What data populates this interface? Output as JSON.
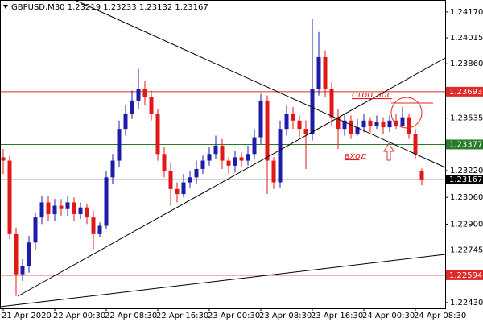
{
  "chart_data": {
    "type": "candlestick",
    "title": "GBPUSD,M30",
    "up_color": "#1c1ca8",
    "down_color": "#e01818",
    "ylim": [
      1.22396,
      1.24237
    ],
    "yticks": [
      {
        "value": 1.2417,
        "label": "1.24170"
      },
      1.24015,
      {
        "value": 1.2386,
        "label": "1.23860"
      },
      1.23535,
      {
        "value": 1.2322,
        "label": "1.23220"
      },
      {
        "value": 1.2306,
        "label": "1.23060"
      },
      {
        "value": 1.229,
        "label": "1.22900"
      },
      1.22745,
      {
        "value": 1.2243,
        "label": "1.22430"
      }
    ],
    "levels": [
      {
        "value": 1.23693,
        "color": "#e02828"
      },
      {
        "value": 1.23377,
        "color": "#2a7a2a"
      },
      {
        "value": 1.23167,
        "color": "#000000"
      },
      {
        "value": 1.22594,
        "color": "#e02828"
      }
    ],
    "annotations": [
      "стоп лос",
      "вход"
    ],
    "categories": [
      "21 Apr 2020",
      null,
      null,
      null,
      null,
      null,
      null,
      null,
      "22 Apr 00:30",
      null,
      null,
      null,
      null,
      null,
      null,
      null,
      "22 Apr 08:30",
      null,
      null,
      null,
      null,
      null,
      null,
      null,
      "22 Apr 16:30",
      null,
      null,
      null,
      null,
      null,
      null,
      null,
      "23 Apr 00:30",
      null,
      null,
      null,
      null,
      null,
      null,
      null,
      "23 Apr 08:30",
      null,
      null,
      null,
      null,
      null,
      null,
      null,
      "23 Apr 16:30",
      null,
      null,
      null,
      null,
      null,
      null,
      null,
      "24 Apr 00:30",
      null,
      null,
      null,
      null,
      null,
      null,
      null,
      "24 Apr 08:30",
      null
    ],
    "open": [
      1.233,
      1.2328,
      1.2284,
      1.226,
      1.2265,
      1.2279,
      1.2294,
      1.2303,
      1.2296,
      1.2301,
      1.2299,
      1.2303,
      1.2296,
      1.23,
      1.2294,
      1.2284,
      1.2289,
      1.2318,
      1.2328,
      1.2347,
      1.2356,
      1.2364,
      1.2371,
      1.2366,
      1.2356,
      1.2332,
      1.2322,
      1.2311,
      1.2308,
      1.2315,
      1.2318,
      1.2323,
      1.2328,
      1.2332,
      1.2337,
      1.2328,
      1.2325,
      1.233,
      1.2328,
      1.2332,
      1.2342,
      1.2364,
      1.2328,
      1.2315,
      1.2347,
      1.2356,
      1.2352,
      1.2347,
      1.2344,
      1.2371,
      1.239,
      1.2371,
      1.2354,
      1.2347,
      1.2352,
      1.2344,
      1.2348,
      1.2352,
      1.2349,
      1.2351,
      1.2348,
      1.2352,
      1.2349,
      1.2354,
      1.2344,
      1.23219
    ],
    "high": [
      1.2335,
      1.2331,
      1.2288,
      1.2269,
      1.2283,
      1.2297,
      1.2307,
      1.2307,
      1.2305,
      1.2305,
      1.2307,
      1.2306,
      1.2303,
      1.2302,
      1.2298,
      1.2291,
      1.2322,
      1.2332,
      1.2352,
      1.2361,
      1.237,
      1.2383,
      1.2376,
      1.237,
      1.2359,
      1.2336,
      1.2327,
      1.2315,
      1.232,
      1.2322,
      1.2328,
      1.2331,
      1.2336,
      1.2343,
      1.2341,
      1.233,
      1.2334,
      1.2333,
      1.2337,
      1.2347,
      1.2368,
      1.2367,
      1.233,
      1.2352,
      1.2361,
      1.236,
      1.2355,
      1.2352,
      1.2413,
      1.2405,
      1.2394,
      1.2375,
      1.2359,
      1.2356,
      1.2355,
      1.2353,
      1.2356,
      1.2354,
      1.2355,
      1.2354,
      1.2355,
      1.2356,
      1.236,
      1.2356,
      1.2347,
      1.23233
    ],
    "low": [
      1.232,
      1.2281,
      1.2247,
      1.2256,
      1.2261,
      1.2275,
      1.229,
      1.2292,
      1.2292,
      1.2295,
      1.2295,
      1.2292,
      1.2293,
      1.229,
      1.2275,
      1.2282,
      1.2287,
      1.2314,
      1.2324,
      1.2343,
      1.2353,
      1.2359,
      1.2361,
      1.2352,
      1.2328,
      1.2318,
      1.2301,
      1.2303,
      1.2306,
      1.2312,
      1.2314,
      1.232,
      1.2325,
      1.2329,
      1.2323,
      1.232,
      1.2321,
      1.2324,
      1.2325,
      1.2329,
      1.2338,
      1.2308,
      1.2311,
      1.2312,
      1.2343,
      1.2347,
      1.2342,
      1.2323,
      1.234,
      1.2367,
      1.2366,
      1.2349,
      1.2335,
      1.2343,
      1.2341,
      1.2343,
      1.2345,
      1.2345,
      1.2347,
      1.2344,
      1.2345,
      1.2347,
      1.2348,
      1.2341,
      1.2329,
      1.23132
    ],
    "close": [
      1.2328,
      1.2284,
      1.226,
      1.2265,
      1.2279,
      1.2294,
      1.2303,
      1.2296,
      1.2301,
      1.2299,
      1.2303,
      1.2296,
      1.23,
      1.2294,
      1.2284,
      1.2289,
      1.2318,
      1.2328,
      1.2347,
      1.2356,
      1.2364,
      1.2371,
      1.2366,
      1.2356,
      1.2332,
      1.2322,
      1.2311,
      1.2308,
      1.2315,
      1.2318,
      1.2323,
      1.2328,
      1.2332,
      1.2337,
      1.2328,
      1.2325,
      1.233,
      1.2328,
      1.2332,
      1.2342,
      1.2364,
      1.2328,
      1.2315,
      1.2347,
      1.2356,
      1.2352,
      1.2347,
      1.2344,
      1.2371,
      1.239,
      1.2371,
      1.2354,
      1.2347,
      1.2352,
      1.2344,
      1.2348,
      1.2352,
      1.2349,
      1.2351,
      1.2348,
      1.2352,
      1.2349,
      1.2354,
      1.2344,
      1.2332,
      1.23167
    ]
  }
}
